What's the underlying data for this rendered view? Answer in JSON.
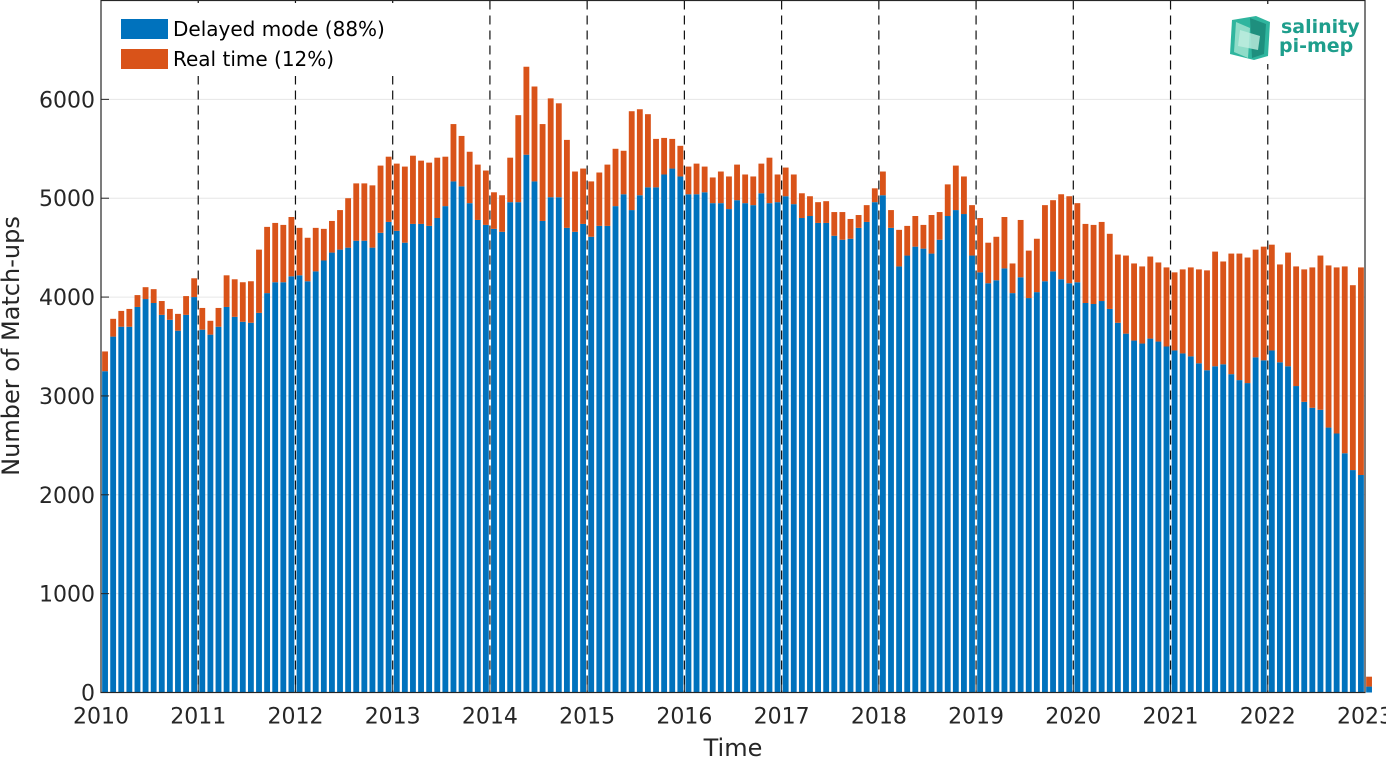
{
  "chart_data": {
    "type": "bar",
    "stacked": true,
    "title": "",
    "xlabel": "Time",
    "ylabel": "Number of Match-ups",
    "xlim": [
      2010,
      2023
    ],
    "ylim": [
      0,
      7000
    ],
    "x_tick_labels": [
      "2010",
      "2011",
      "2012",
      "2013",
      "2014",
      "2015",
      "2016",
      "2017",
      "2018",
      "2019",
      "2020",
      "2021",
      "2022",
      "2023"
    ],
    "y_ticks": [
      0,
      1000,
      2000,
      3000,
      4000,
      5000,
      6000
    ],
    "grid": "horizontal",
    "year_dividers": "dashed vertical lines at each year",
    "legend_position": "top-left",
    "series": [
      {
        "name": "Delayed mode (88%)",
        "color": "#0072BD",
        "values": [
          3250,
          3600,
          3700,
          3700,
          3900,
          3980,
          3940,
          3820,
          3770,
          3660,
          3820,
          4000,
          3670,
          3620,
          3700,
          3900,
          3800,
          3750,
          3740,
          3840,
          4040,
          4150,
          4150,
          4210,
          4220,
          4160,
          4260,
          4370,
          4450,
          4480,
          4500,
          4570,
          4570,
          4500,
          4650,
          4760,
          4670,
          4550,
          4740,
          4740,
          4720,
          4800,
          4920,
          5170,
          5120,
          4950,
          4780,
          4730,
          4690,
          4660,
          4960,
          4960,
          5440,
          5170,
          4770,
          5010,
          5010,
          4700,
          4660,
          4740,
          4610,
          4720,
          4720,
          4920,
          5040,
          4880,
          5030,
          5110,
          5110,
          5240,
          5300,
          5220,
          5040,
          5040,
          5060,
          4950,
          4950,
          4890,
          4980,
          4950,
          4930,
          5050,
          4950,
          4960,
          5020,
          4940,
          4800,
          4820,
          4750,
          4750,
          4620,
          4580,
          4590,
          4700,
          4760,
          4960,
          5030,
          4700,
          4310,
          4420,
          4510,
          4490,
          4440,
          4580,
          4820,
          4880,
          4840,
          4420,
          4250,
          4140,
          4170,
          4290,
          4040,
          4200,
          3990,
          4050,
          4160,
          4260,
          4180,
          4140,
          4150,
          3940,
          3930,
          3960,
          3880,
          3740,
          3630,
          3560,
          3530,
          3580,
          3550,
          3500,
          3460,
          3430,
          3400,
          3330,
          3260,
          3300,
          3320,
          3220,
          3160,
          3130,
          3390,
          3360,
          3460,
          3340,
          3300,
          3100,
          2940,
          2880,
          2860,
          2680,
          2620,
          2420,
          2250,
          2200,
          60
        ],
        "real_time_values_note": "see Real time series"
      },
      {
        "name": "Real time (12%)",
        "color": "#D95319",
        "values": [
          200,
          180,
          160,
          180,
          120,
          120,
          140,
          140,
          110,
          170,
          190,
          190,
          220,
          140,
          190,
          320,
          380,
          400,
          420,
          640,
          670,
          600,
          580,
          600,
          480,
          440,
          440,
          320,
          320,
          400,
          500,
          580,
          580,
          630,
          680,
          660,
          680,
          770,
          690,
          640,
          640,
          610,
          500,
          580,
          510,
          520,
          560,
          550,
          370,
          370,
          450,
          880,
          890,
          960,
          980,
          1000,
          950,
          890,
          610,
          560,
          560,
          540,
          620,
          580,
          440,
          1000,
          870,
          740,
          490,
          370,
          300,
          310,
          280,
          310,
          260,
          260,
          320,
          330,
          360,
          290,
          290,
          300,
          460,
          280,
          290,
          300,
          250,
          200,
          210,
          220,
          240,
          280,
          200,
          130,
          170,
          140,
          240,
          180,
          370,
          300,
          310,
          240,
          390,
          280,
          320,
          450,
          380,
          510,
          550,
          410,
          440,
          520,
          300,
          580,
          480,
          540,
          770,
          720,
          860,
          880,
          800,
          800,
          800,
          800,
          760,
          690,
          790,
          780,
          780,
          830,
          800,
          800,
          790,
          850,
          900,
          950,
          1010,
          1160,
          1040,
          1220,
          1280,
          1270,
          1090,
          1150,
          1070,
          990,
          1150,
          1210,
          1340,
          1420,
          1560,
          1640,
          1680,
          1890,
          1870,
          2100,
          100
        ]
      }
    ]
  },
  "logo": {
    "line1": "salinity",
    "line2": "pi-mep",
    "color": "#1E9E8C"
  }
}
